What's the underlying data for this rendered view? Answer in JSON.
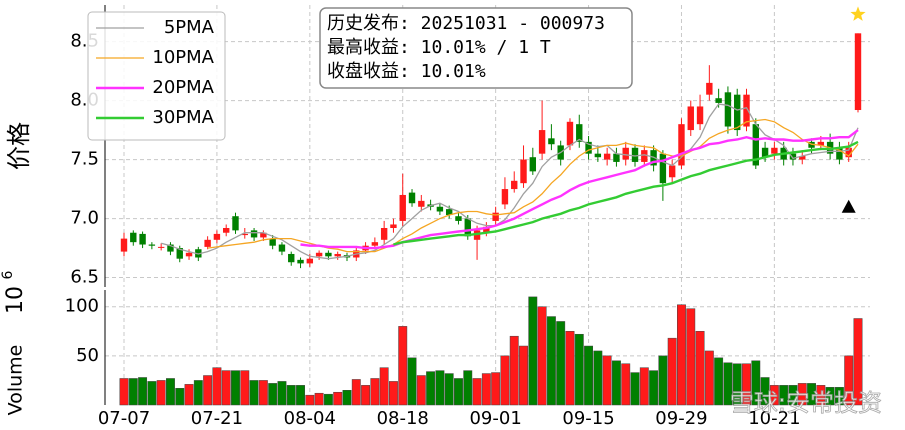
{
  "chart_data": {
    "type": "candlestick",
    "annotation": [
      "历史发布: 20251031 - 000973",
      "最高收益: 10.01% / 1 T",
      "收盘收益: 10.01%"
    ],
    "watermark": "雪球:安常投资",
    "ylabel": "价格",
    "grid": true,
    "legend": "upper left",
    "up_color": "#ff1a1a",
    "down_color": "#008000",
    "ylim": [
      6.42,
      8.81
    ],
    "yticks": [
      6.5,
      {
        "value": 7,
        "label": "7.0"
      },
      7.5,
      {
        "value": 8,
        "label": "8.0"
      },
      8.5
    ],
    "categories": [
      "07-07",
      null,
      null,
      null,
      null,
      null,
      null,
      null,
      null,
      null,
      "07-21",
      null,
      null,
      null,
      null,
      null,
      null,
      null,
      null,
      null,
      "08-04",
      null,
      null,
      null,
      null,
      null,
      null,
      null,
      null,
      null,
      "08-18",
      null,
      null,
      null,
      null,
      null,
      null,
      null,
      null,
      null,
      "09-01",
      null,
      null,
      null,
      null,
      null,
      null,
      null,
      null,
      null,
      "09-15",
      null,
      null,
      null,
      null,
      null,
      null,
      null,
      null,
      null,
      "09-29",
      null,
      null,
      null,
      null,
      null,
      null,
      null,
      null,
      null,
      "10-21",
      null,
      null,
      null,
      null,
      null,
      null,
      null,
      null,
      null
    ],
    "open": [
      6.72,
      6.88,
      6.87,
      6.78,
      6.76,
      6.78,
      6.75,
      6.68,
      6.74,
      6.76,
      6.82,
      6.88,
      7.02,
      6.86,
      6.9,
      6.84,
      6.83,
      6.78,
      6.7,
      6.65,
      6.62,
      6.68,
      6.71,
      6.68,
      6.69,
      6.67,
      6.73,
      6.77,
      6.82,
      6.92,
      6.98,
      7.22,
      7.1,
      7.12,
      7.1,
      7.08,
      7.02,
      7.0,
      6.82,
      6.88,
      6.98,
      7.12,
      7.25,
      7.3,
      7.52,
      7.55,
      7.68,
      7.62,
      7.62,
      7.8,
      7.65,
      7.55,
      7.5,
      7.55,
      7.5,
      7.6,
      7.48,
      7.58,
      7.55,
      7.35,
      7.45,
      7.75,
      7.8,
      8.05,
      8.02,
      8.07,
      8.05,
      7.78,
      7.8,
      7.6,
      7.55,
      7.6,
      7.55,
      7.5,
      7.65,
      7.62,
      7.65,
      7.6,
      7.52,
      7.92
    ],
    "high": [
      6.88,
      6.9,
      6.89,
      6.8,
      6.79,
      6.8,
      6.77,
      6.74,
      6.76,
      6.85,
      6.9,
      6.95,
      7.05,
      6.92,
      6.92,
      6.9,
      6.86,
      6.8,
      6.72,
      6.67,
      6.7,
      6.73,
      6.73,
      6.72,
      6.71,
      6.76,
      6.8,
      6.84,
      6.98,
      7.0,
      7.38,
      7.25,
      7.2,
      7.16,
      7.13,
      7.11,
      7.06,
      7.03,
      6.94,
      6.97,
      7.1,
      7.35,
      7.4,
      7.62,
      7.6,
      8.0,
      7.8,
      7.66,
      7.85,
      7.88,
      7.7,
      7.62,
      7.6,
      7.6,
      7.65,
      7.63,
      7.62,
      7.62,
      7.58,
      7.5,
      7.85,
      8.0,
      8.05,
      8.3,
      8.1,
      8.12,
      8.1,
      8.1,
      7.85,
      7.65,
      7.65,
      7.65,
      7.6,
      7.58,
      7.68,
      7.7,
      7.72,
      7.65,
      7.65,
      8.57
    ],
    "low": [
      6.68,
      6.77,
      6.75,
      6.74,
      6.73,
      6.69,
      6.63,
      6.65,
      6.64,
      6.74,
      6.79,
      6.85,
      6.87,
      6.83,
      6.81,
      6.81,
      6.74,
      6.69,
      6.6,
      6.58,
      6.59,
      6.65,
      6.65,
      6.65,
      6.64,
      6.64,
      6.7,
      6.74,
      6.78,
      6.88,
      6.93,
      7.1,
      7.06,
      7.07,
      7.03,
      7.0,
      6.95,
      6.82,
      6.65,
      6.85,
      6.95,
      7.08,
      7.22,
      7.26,
      7.37,
      7.5,
      7.58,
      7.45,
      7.58,
      7.6,
      7.5,
      7.48,
      7.45,
      7.44,
      7.45,
      7.44,
      7.44,
      7.4,
      7.15,
      7.3,
      7.42,
      7.7,
      7.75,
      8.0,
      7.94,
      7.72,
      7.7,
      7.74,
      7.42,
      7.48,
      7.5,
      7.45,
      7.45,
      7.46,
      7.55,
      7.58,
      7.5,
      7.46,
      7.48,
      7.9
    ],
    "close": [
      6.83,
      6.8,
      6.78,
      6.77,
      6.76,
      6.72,
      6.66,
      6.71,
      6.67,
      6.82,
      6.87,
      6.92,
      6.9,
      6.87,
      6.84,
      6.88,
      6.77,
      6.72,
      6.63,
      6.62,
      6.66,
      6.71,
      6.68,
      6.7,
      6.67,
      6.73,
      6.77,
      6.8,
      6.92,
      6.95,
      7.2,
      7.13,
      7.15,
      7.1,
      7.06,
      7.03,
      6.98,
      6.85,
      6.9,
      6.93,
      7.05,
      7.25,
      7.32,
      7.5,
      7.4,
      7.75,
      7.63,
      7.5,
      7.82,
      7.65,
      7.55,
      7.52,
      7.55,
      7.48,
      7.6,
      7.48,
      7.58,
      7.45,
      7.3,
      7.45,
      7.8,
      7.95,
      7.95,
      8.15,
      7.98,
      7.78,
      7.75,
      8.05,
      7.45,
      7.52,
      7.6,
      7.5,
      7.5,
      7.53,
      7.6,
      7.65,
      7.55,
      7.5,
      7.6,
      8.57
    ],
    "series": [
      {
        "name": "5PMA",
        "color": "#a0a0a0",
        "values": [
          null,
          null,
          null,
          null,
          6.79,
          6.77,
          6.74,
          6.72,
          6.7,
          6.72,
          6.75,
          6.8,
          6.84,
          6.88,
          6.88,
          6.88,
          6.85,
          6.82,
          6.77,
          6.72,
          6.68,
          6.67,
          6.66,
          6.67,
          6.68,
          6.7,
          6.71,
          6.73,
          6.78,
          6.83,
          6.93,
          7.0,
          7.07,
          7.11,
          7.13,
          7.09,
          7.06,
          7.0,
          6.96,
          6.94,
          6.94,
          6.99,
          7.09,
          7.21,
          7.3,
          7.44,
          7.52,
          7.56,
          7.62,
          7.67,
          7.63,
          7.61,
          7.62,
          7.55,
          7.54,
          7.53,
          7.54,
          7.52,
          7.48,
          7.45,
          7.52,
          7.59,
          7.69,
          7.86,
          7.97,
          7.96,
          7.92,
          7.94,
          7.8,
          7.71,
          7.67,
          7.62,
          7.51,
          7.53,
          7.55,
          7.56,
          7.57,
          7.57,
          7.58,
          7.77
        ]
      },
      {
        "name": "10PMA",
        "color": "#f5a623",
        "values": [
          null,
          null,
          null,
          null,
          null,
          null,
          null,
          null,
          null,
          6.75,
          6.76,
          6.77,
          6.78,
          6.79,
          6.8,
          6.82,
          6.83,
          6.83,
          6.83,
          6.81,
          6.79,
          6.77,
          6.75,
          6.74,
          6.72,
          6.72,
          6.72,
          6.72,
          6.75,
          6.78,
          6.83,
          6.87,
          6.92,
          6.96,
          7.0,
          7.03,
          7.05,
          7.06,
          7.06,
          7.04,
          7.03,
          7.04,
          7.05,
          7.1,
          7.14,
          7.21,
          7.3,
          7.37,
          7.46,
          7.53,
          7.58,
          7.6,
          7.62,
          7.62,
          7.64,
          7.62,
          7.61,
          7.6,
          7.55,
          7.53,
          7.53,
          7.57,
          7.61,
          7.68,
          7.72,
          7.75,
          7.77,
          7.82,
          7.83,
          7.84,
          7.82,
          7.77,
          7.73,
          7.67,
          7.63,
          7.62,
          7.6,
          7.58,
          7.53,
          7.63
        ]
      },
      {
        "name": "20PMA",
        "color": "#ff33ff",
        "values": [
          null,
          null,
          null,
          null,
          null,
          null,
          null,
          null,
          null,
          null,
          null,
          null,
          null,
          null,
          null,
          null,
          null,
          null,
          null,
          6.78,
          6.77,
          6.77,
          6.76,
          6.76,
          6.76,
          6.76,
          6.75,
          6.75,
          6.76,
          6.77,
          6.8,
          6.82,
          6.84,
          6.86,
          6.87,
          6.88,
          6.89,
          6.9,
          6.91,
          6.92,
          6.94,
          6.97,
          7.0,
          7.04,
          7.08,
          7.12,
          7.16,
          7.19,
          7.24,
          7.28,
          7.31,
          7.33,
          7.35,
          7.37,
          7.39,
          7.41,
          7.45,
          7.48,
          7.49,
          7.52,
          7.55,
          7.58,
          7.6,
          7.63,
          7.64,
          7.66,
          7.67,
          7.69,
          7.67,
          7.68,
          7.67,
          7.67,
          7.66,
          7.66,
          7.67,
          7.68,
          7.68,
          7.69,
          7.69,
          7.75
        ]
      },
      {
        "name": "30PMA",
        "color": "#33cc33",
        "values": [
          null,
          null,
          null,
          null,
          null,
          null,
          null,
          null,
          null,
          null,
          null,
          null,
          null,
          null,
          null,
          null,
          null,
          null,
          null,
          null,
          null,
          null,
          null,
          null,
          null,
          null,
          null,
          null,
          null,
          6.78,
          6.8,
          6.81,
          6.82,
          6.83,
          6.84,
          6.85,
          6.86,
          6.86,
          6.87,
          6.88,
          6.89,
          6.91,
          6.93,
          6.95,
          6.97,
          7.0,
          7.02,
          7.04,
          7.07,
          7.09,
          7.12,
          7.14,
          7.16,
          7.18,
          7.21,
          7.23,
          7.25,
          7.27,
          7.28,
          7.3,
          7.33,
          7.36,
          7.38,
          7.41,
          7.43,
          7.45,
          7.47,
          7.49,
          7.5,
          7.52,
          7.54,
          7.55,
          7.56,
          7.57,
          7.58,
          7.59,
          7.59,
          7.6,
          7.61,
          7.65
        ]
      }
    ],
    "markers": [
      {
        "shape": "star",
        "color": "#ffd21f",
        "index": 79,
        "value": 8.73
      },
      {
        "shape": "triangle",
        "color": "#000000",
        "index": 78,
        "value": 7.1
      }
    ],
    "volume": {
      "ylabel": "Volume",
      "scale_base": "10",
      "scale_exponent": "6",
      "ylim": [
        0,
        117
      ],
      "yticks": [
        50,
        100
      ],
      "values": [
        27,
        27,
        28,
        24,
        25,
        27,
        17,
        21,
        25,
        30,
        38,
        35,
        35,
        35,
        25,
        25,
        22,
        24,
        20,
        20,
        10,
        12,
        11,
        13,
        15,
        26,
        20,
        27,
        38,
        24,
        80,
        48,
        30,
        34,
        35,
        32,
        27,
        35,
        27,
        32,
        33,
        50,
        70,
        60,
        110,
        100,
        90,
        85,
        75,
        72,
        60,
        55,
        50,
        45,
        42,
        33,
        38,
        35,
        50,
        68,
        102,
        98,
        75,
        55,
        48,
        43,
        42,
        42,
        45,
        28,
        20,
        20,
        20,
        22,
        22,
        20,
        18,
        18,
        50,
        88
      ]
    }
  }
}
